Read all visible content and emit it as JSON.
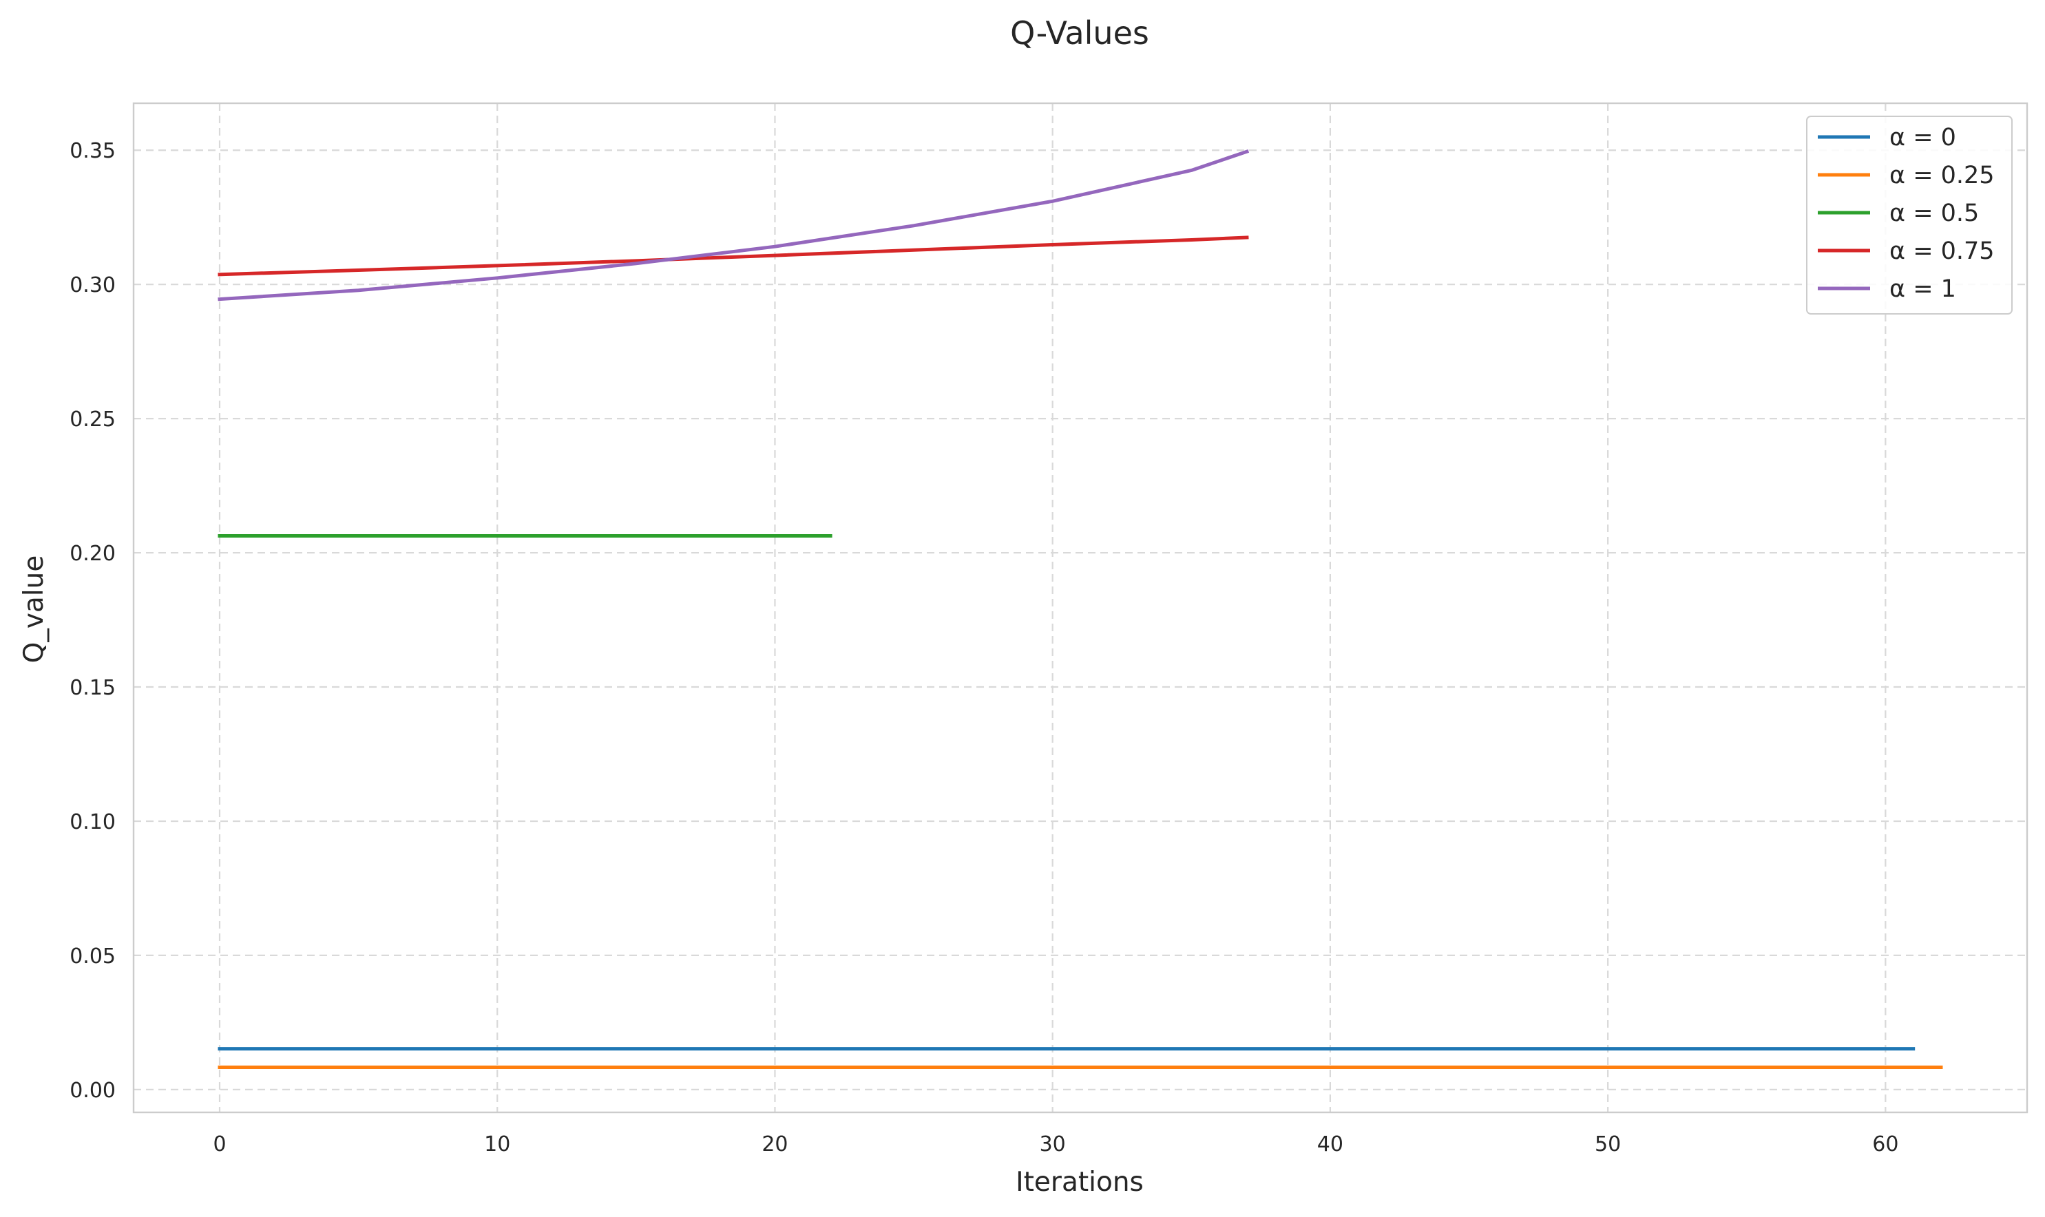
{
  "chart_data": {
    "type": "line",
    "title": "Q-Values",
    "xlabel": "Iterations",
    "ylabel": "Q_value",
    "xlim": [
      -3.1,
      65.1
    ],
    "ylim": [
      -0.0085,
      0.3675
    ],
    "xticks": [
      0,
      10,
      20,
      30,
      40,
      50,
      60
    ],
    "yticks": [
      0.0,
      0.05,
      0.1,
      0.15,
      0.2,
      0.25,
      0.3,
      0.35
    ],
    "xtick_labels": [
      "0",
      "10",
      "20",
      "30",
      "40",
      "50",
      "60"
    ],
    "ytick_labels": [
      "0.00",
      "0.05",
      "0.10",
      "0.15",
      "0.20",
      "0.25",
      "0.30",
      "0.35"
    ],
    "grid": true,
    "legend_position": "top-right",
    "series": [
      {
        "name": "α = 0",
        "color": "#1f77b4",
        "x": [
          0,
          61
        ],
        "y": [
          0.0152,
          0.0152
        ]
      },
      {
        "name": "α = 0.25",
        "color": "#ff7f0e",
        "x": [
          0,
          62
        ],
        "y": [
          0.0083,
          0.0083
        ]
      },
      {
        "name": "α = 0.5",
        "color": "#2ca02c",
        "x": [
          0,
          22
        ],
        "y": [
          0.2063,
          0.2063
        ]
      },
      {
        "name": "α = 0.75",
        "color": "#d62728",
        "x": [
          0,
          5,
          10,
          15,
          20,
          25,
          30,
          35,
          37
        ],
        "y": [
          0.3037,
          0.3053,
          0.307,
          0.3088,
          0.3108,
          0.3128,
          0.3148,
          0.3166,
          0.3175
        ]
      },
      {
        "name": "α = 1",
        "color": "#9467bd",
        "x": [
          0,
          5,
          10,
          15,
          20,
          25,
          30,
          35,
          37
        ],
        "y": [
          0.2945,
          0.2978,
          0.3024,
          0.3078,
          0.3141,
          0.3219,
          0.331,
          0.3425,
          0.3495
        ]
      }
    ]
  }
}
